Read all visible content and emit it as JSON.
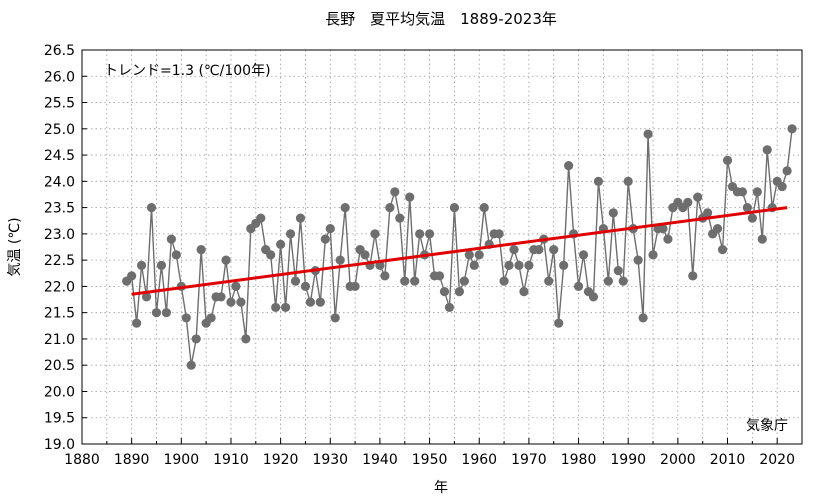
{
  "chart_data": {
    "type": "line",
    "title": "長野　夏平均気温　1889-2023年",
    "xlabel": "年",
    "ylabel": "気温 (℃)",
    "xlim": [
      1880,
      2025
    ],
    "ylim": [
      19.0,
      26.5
    ],
    "x_ticks": [
      1880,
      1890,
      1900,
      1910,
      1920,
      1930,
      1940,
      1950,
      1960,
      1970,
      1980,
      1990,
      2000,
      2010,
      2020
    ],
    "y_ticks": [
      "19.0",
      "19.5",
      "20.0",
      "20.5",
      "21.0",
      "21.5",
      "22.0",
      "22.5",
      "23.0",
      "23.5",
      "24.0",
      "24.5",
      "25.0",
      "25.5",
      "26.0",
      "26.5"
    ],
    "grid": true,
    "series": [
      {
        "color": "#6e6e6e",
        "marker": "circle",
        "x": [
          1889,
          1890,
          1891,
          1892,
          1893,
          1894,
          1895,
          1896,
          1897,
          1898,
          1899,
          1900,
          1901,
          1902,
          1903,
          1904,
          1905,
          1906,
          1907,
          1908,
          1909,
          1910,
          1911,
          1912,
          1913,
          1914,
          1915,
          1916,
          1917,
          1918,
          1919,
          1920,
          1921,
          1922,
          1923,
          1924,
          1925,
          1926,
          1927,
          1928,
          1929,
          1930,
          1931,
          1932,
          1933,
          1934,
          1935,
          1936,
          1937,
          1938,
          1939,
          1940,
          1941,
          1942,
          1943,
          1944,
          1945,
          1946,
          1947,
          1948,
          1949,
          1950,
          1951,
          1952,
          1953,
          1954,
          1955,
          1956,
          1957,
          1958,
          1959,
          1960,
          1961,
          1962,
          1963,
          1964,
          1965,
          1966,
          1967,
          1968,
          1969,
          1970,
          1971,
          1972,
          1973,
          1974,
          1975,
          1976,
          1977,
          1978,
          1979,
          1980,
          1981,
          1982,
          1983,
          1984,
          1985,
          1986,
          1987,
          1988,
          1989,
          1990,
          1991,
          1992,
          1993,
          1994,
          1995,
          1996,
          1997,
          1998,
          1999,
          2000,
          2001,
          2002,
          2003,
          2004,
          2005,
          2006,
          2007,
          2008,
          2009,
          2010,
          2011,
          2012,
          2013,
          2014,
          2015,
          2016,
          2017,
          2018,
          2019,
          2020,
          2021,
          2022,
          2023
        ],
        "y": [
          22.1,
          22.2,
          21.3,
          22.4,
          21.8,
          23.5,
          21.5,
          22.4,
          21.5,
          22.9,
          22.6,
          22.0,
          21.4,
          20.5,
          21.0,
          22.7,
          21.3,
          21.4,
          21.8,
          21.8,
          22.5,
          21.7,
          22.0,
          21.7,
          21.0,
          23.1,
          23.2,
          23.3,
          22.7,
          22.6,
          21.6,
          22.8,
          21.6,
          23.0,
          22.1,
          23.3,
          22.0,
          21.7,
          22.3,
          21.7,
          22.9,
          23.1,
          21.4,
          22.5,
          23.5,
          22.0,
          22.0,
          22.7,
          22.6,
          22.4,
          23.0,
          22.4,
          22.2,
          23.5,
          23.8,
          23.3,
          22.1,
          23.7,
          22.1,
          23.0,
          22.6,
          23.0,
          22.2,
          22.2,
          21.9,
          21.6,
          23.5,
          21.9,
          22.1,
          22.6,
          22.4,
          22.6,
          23.5,
          22.8,
          23.0,
          23.0,
          22.1,
          22.4,
          22.7,
          22.4,
          21.9,
          22.4,
          22.7,
          22.7,
          22.9,
          22.1,
          22.7,
          21.3,
          22.4,
          24.3,
          23.0,
          22.0,
          22.6,
          21.9,
          21.8,
          24.0,
          23.1,
          22.1,
          23.4,
          22.3,
          22.1,
          24.0,
          23.1,
          22.5,
          21.4,
          24.9,
          22.6,
          23.1,
          23.1,
          22.9,
          23.5,
          23.6,
          23.5,
          23.6,
          22.2,
          23.7,
          23.3,
          23.4,
          23.0,
          23.1,
          22.7,
          24.4,
          23.9,
          23.8,
          23.8,
          23.5,
          23.3,
          23.8,
          22.9,
          24.6,
          23.5,
          24.0,
          23.9,
          24.2,
          25.0
        ]
      },
      {
        "color": "#e00000",
        "x": [
          1890,
          2022
        ],
        "y": [
          21.85,
          23.5
        ]
      }
    ],
    "annotations": [
      "トレンド=1.3 (℃/100年)",
      "気象庁"
    ]
  }
}
